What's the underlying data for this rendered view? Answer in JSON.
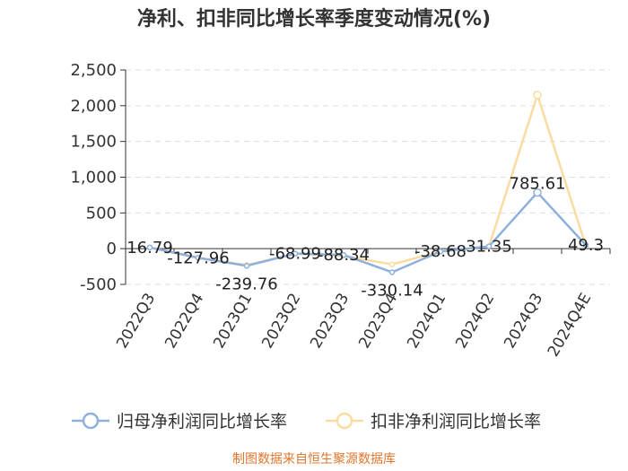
{
  "chart_data": {
    "type": "line",
    "title": "净利、扣非同比增长率季度变动情况(%)",
    "categories": [
      "2022Q3",
      "2022Q4",
      "2023Q1",
      "2023Q2",
      "2023Q3",
      "2023Q4",
      "2024Q1",
      "2024Q2",
      "2024Q3",
      "2024Q4E"
    ],
    "y_ticks": [
      "2,500",
      "2,000",
      "1,500",
      "1,000",
      "500",
      "0",
      "-500"
    ],
    "ylim": [
      -500,
      2500
    ],
    "grid": "horizontal dashed",
    "legend_position": "bottom",
    "series": [
      {
        "name": "归母净利润同比增长率",
        "color": "#8fb0dc",
        "values": [
          16.79,
          -127.96,
          -239.76,
          -68.99,
          -88.34,
          -330.14,
          -38.68,
          31.35,
          785.61,
          49.3
        ],
        "labels": [
          "16.79",
          "-127.96",
          "-239.76",
          "-68.99",
          "-88.34",
          "-330.14",
          "-38.68",
          "31.35",
          "785.61",
          "49.3"
        ]
      },
      {
        "name": "扣非净利润同比增长率",
        "color": "#fadca0",
        "values": [
          15,
          -130,
          -230,
          -70,
          -100,
          -220,
          -40,
          30,
          2150,
          40
        ]
      }
    ],
    "source": "制图数据来自恒生聚源数据库"
  }
}
